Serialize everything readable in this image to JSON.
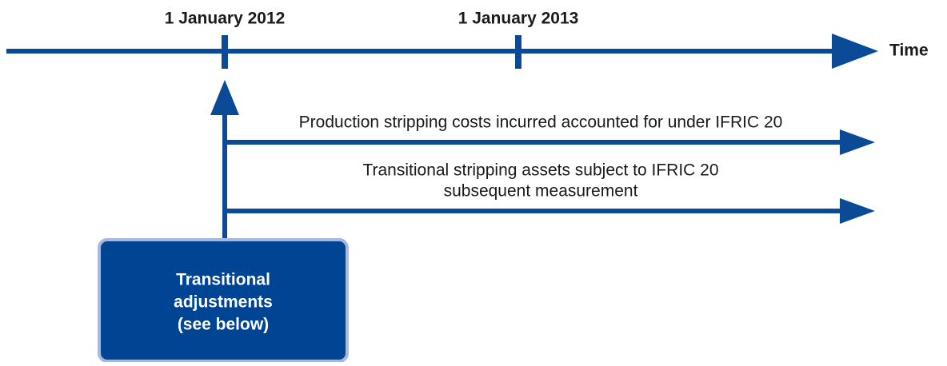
{
  "timeline": {
    "axis_label": "Time",
    "dates": [
      "1 January 2012",
      "1 January 2013"
    ]
  },
  "arrows": [
    {
      "label_lines": [
        "Production stripping costs incurred accounted for under IFRIC 20"
      ]
    },
    {
      "label_lines": [
        "Transitional stripping assets subject to IFRIC 20",
        "subsequent measurement"
      ]
    }
  ],
  "box": {
    "label_lines": [
      "Transitional",
      "adjustments",
      "(see below)"
    ]
  }
}
